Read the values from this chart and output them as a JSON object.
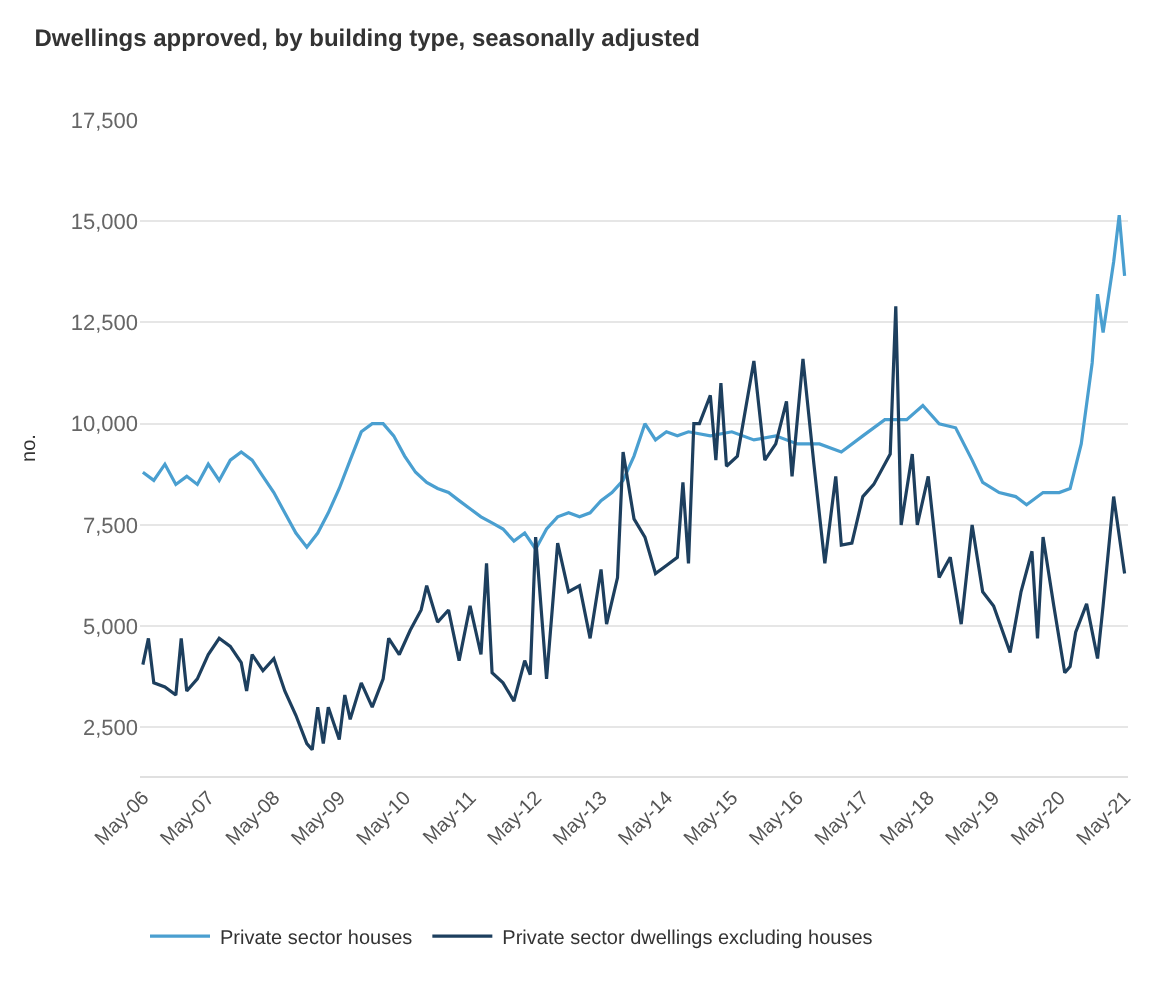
{
  "chart_data": {
    "type": "line",
    "title": "Dwellings approved, by building type, seasonally adjusted",
    "ylabel": "no.",
    "xlim": [
      "2006-04-15",
      "2021-05-20"
    ],
    "ylim": [
      1300,
      17500
    ],
    "yticks": [
      {
        "value": 2500,
        "label": "2,500"
      },
      {
        "value": 5000,
        "label": "5,000"
      },
      {
        "value": 7500,
        "label": "7,500"
      },
      {
        "value": 10000,
        "label": "10,000"
      },
      {
        "value": 12500,
        "label": "12,500"
      },
      {
        "value": 15000,
        "label": "15,000"
      },
      {
        "value": 17500,
        "label": "17,500"
      }
    ],
    "xticks": [
      {
        "value": "2006-05",
        "label": "May-06"
      },
      {
        "value": "2007-05",
        "label": "May-07"
      },
      {
        "value": "2008-05",
        "label": "May-08"
      },
      {
        "value": "2009-05",
        "label": "May-09"
      },
      {
        "value": "2010-05",
        "label": "May-10"
      },
      {
        "value": "2011-05",
        "label": "May-11"
      },
      {
        "value": "2012-05",
        "label": "May-12"
      },
      {
        "value": "2013-05",
        "label": "May-13"
      },
      {
        "value": "2014-05",
        "label": "May-14"
      },
      {
        "value": "2015-05",
        "label": "May-15"
      },
      {
        "value": "2016-05",
        "label": "May-16"
      },
      {
        "value": "2017-05",
        "label": "May-17"
      },
      {
        "value": "2018-05",
        "label": "May-18"
      },
      {
        "value": "2019-05",
        "label": "May-19"
      },
      {
        "value": "2020-05",
        "label": "May-20"
      },
      {
        "value": "2021-05",
        "label": "May-21"
      }
    ],
    "grid": "y",
    "legend": "bottom",
    "marker": "none",
    "line_style": "solid",
    "series": [
      {
        "name": "Private sector houses",
        "color": "#4a9fd0",
        "x": [
          "2006-05",
          "2006-07",
          "2006-09",
          "2006-11",
          "2007-01",
          "2007-03",
          "2007-05",
          "2007-07",
          "2007-09",
          "2007-11",
          "2008-01",
          "2008-03",
          "2008-05",
          "2008-07",
          "2008-09",
          "2008-11",
          "2009-01",
          "2009-03",
          "2009-05",
          "2009-07",
          "2009-09",
          "2009-11",
          "2010-01",
          "2010-03",
          "2010-05",
          "2010-07",
          "2010-09",
          "2010-11",
          "2011-01",
          "2011-03",
          "2011-05",
          "2011-07",
          "2011-09",
          "2011-11",
          "2012-01",
          "2012-03",
          "2012-05",
          "2012-07",
          "2012-09",
          "2012-11",
          "2013-01",
          "2013-03",
          "2013-05",
          "2013-07",
          "2013-09",
          "2013-11",
          "2014-01",
          "2014-03",
          "2014-05",
          "2014-07",
          "2014-09",
          "2015-01",
          "2015-05",
          "2015-09",
          "2016-01",
          "2016-05",
          "2016-09",
          "2017-01",
          "2017-05",
          "2017-09",
          "2018-01",
          "2018-04",
          "2018-07",
          "2018-10",
          "2019-01",
          "2019-03",
          "2019-06",
          "2019-09",
          "2019-11",
          "2020-02",
          "2020-05",
          "2020-07",
          "2020-09",
          "2020-11",
          "2020-12",
          "2021-01",
          "2021-03",
          "2021-04",
          "2021-05"
        ],
        "values": [
          8800,
          8600,
          9000,
          8500,
          8700,
          8500,
          9000,
          8600,
          9100,
          9300,
          9100,
          8700,
          8300,
          7800,
          7300,
          6950,
          7300,
          7800,
          8400,
          9100,
          9800,
          10000,
          10000,
          9700,
          9200,
          8800,
          8550,
          8400,
          8300,
          8100,
          7900,
          7700,
          7550,
          7400,
          7100,
          7300,
          6900,
          7400,
          7700,
          7800,
          7700,
          7800,
          8100,
          8300,
          8600,
          9200,
          10000,
          9600,
          9800,
          9700,
          9800,
          9700,
          9800,
          9600,
          9700,
          9500,
          9500,
          9300,
          9700,
          10100,
          10100,
          10450,
          10000,
          9900,
          9100,
          8550,
          8300,
          8200,
          8000,
          8300,
          8300,
          8400,
          9500,
          11500,
          13200,
          12250,
          14000,
          15150,
          13650
        ]
      },
      {
        "name": "Private sector dwellings excluding houses",
        "color": "#1d3f5e",
        "x": [
          "2006-05",
          "2006-06",
          "2006-07",
          "2006-09",
          "2006-11",
          "2006-12",
          "2007-01",
          "2007-03",
          "2007-05",
          "2007-07",
          "2007-09",
          "2007-11",
          "2007-12",
          "2008-01",
          "2008-03",
          "2008-05",
          "2008-07",
          "2008-09",
          "2008-11",
          "2008-12",
          "2009-01",
          "2009-02",
          "2009-03",
          "2009-05",
          "2009-06",
          "2009-07",
          "2009-09",
          "2009-11",
          "2010-01",
          "2010-02",
          "2010-04",
          "2010-06",
          "2010-08",
          "2010-09",
          "2010-11",
          "2011-01",
          "2011-03",
          "2011-05",
          "2011-07",
          "2011-08",
          "2011-09",
          "2011-11",
          "2012-01",
          "2012-03",
          "2012-04",
          "2012-05",
          "2012-07",
          "2012-09",
          "2012-11",
          "2013-01",
          "2013-03",
          "2013-05",
          "2013-06",
          "2013-08",
          "2013-09",
          "2013-11",
          "2014-01",
          "2014-03",
          "2014-05",
          "2014-07",
          "2014-08",
          "2014-09",
          "2014-10",
          "2014-11",
          "2015-01",
          "2015-02",
          "2015-03",
          "2015-04",
          "2015-06",
          "2015-09",
          "2015-11",
          "2016-01",
          "2016-03",
          "2016-04",
          "2016-06",
          "2016-08",
          "2016-10",
          "2016-12",
          "2017-01",
          "2017-03",
          "2017-05",
          "2017-07",
          "2017-10",
          "2017-11",
          "2017-12",
          "2018-02",
          "2018-03",
          "2018-05",
          "2018-07",
          "2018-09",
          "2018-11",
          "2019-01",
          "2019-03",
          "2019-05",
          "2019-08",
          "2019-10",
          "2019-12",
          "2020-01",
          "2020-02",
          "2020-04",
          "2020-06",
          "2020-07",
          "2020-08",
          "2020-10",
          "2020-12",
          "2021-01",
          "2021-03",
          "2021-05"
        ],
        "values": [
          4050,
          4700,
          3600,
          3500,
          3300,
          4700,
          3400,
          3700,
          4300,
          4700,
          4500,
          4100,
          3400,
          4300,
          3900,
          4200,
          3400,
          2800,
          2100,
          1950,
          3000,
          2100,
          3000,
          2200,
          3300,
          2700,
          3600,
          3000,
          3700,
          4700,
          4300,
          4900,
          5400,
          6000,
          5100,
          5400,
          4150,
          5500,
          4300,
          6550,
          3850,
          3600,
          3150,
          4150,
          3800,
          7200,
          3700,
          7050,
          5850,
          6000,
          4700,
          6400,
          5050,
          6200,
          9300,
          7650,
          7200,
          6300,
          6500,
          6700,
          8550,
          6550,
          10000,
          10000,
          10700,
          9100,
          11000,
          8950,
          9200,
          11550,
          9100,
          9500,
          10550,
          8700,
          11600,
          9000,
          6550,
          8700,
          7000,
          7050,
          8200,
          8500,
          9250,
          12900,
          7500,
          9250,
          7500,
          8700,
          6200,
          6700,
          5050,
          7500,
          5850,
          5500,
          4350,
          5850,
          6850,
          4700,
          7200,
          5500,
          3850,
          4000,
          4850,
          5550,
          4200,
          5500,
          8200,
          6300
        ]
      }
    ]
  }
}
